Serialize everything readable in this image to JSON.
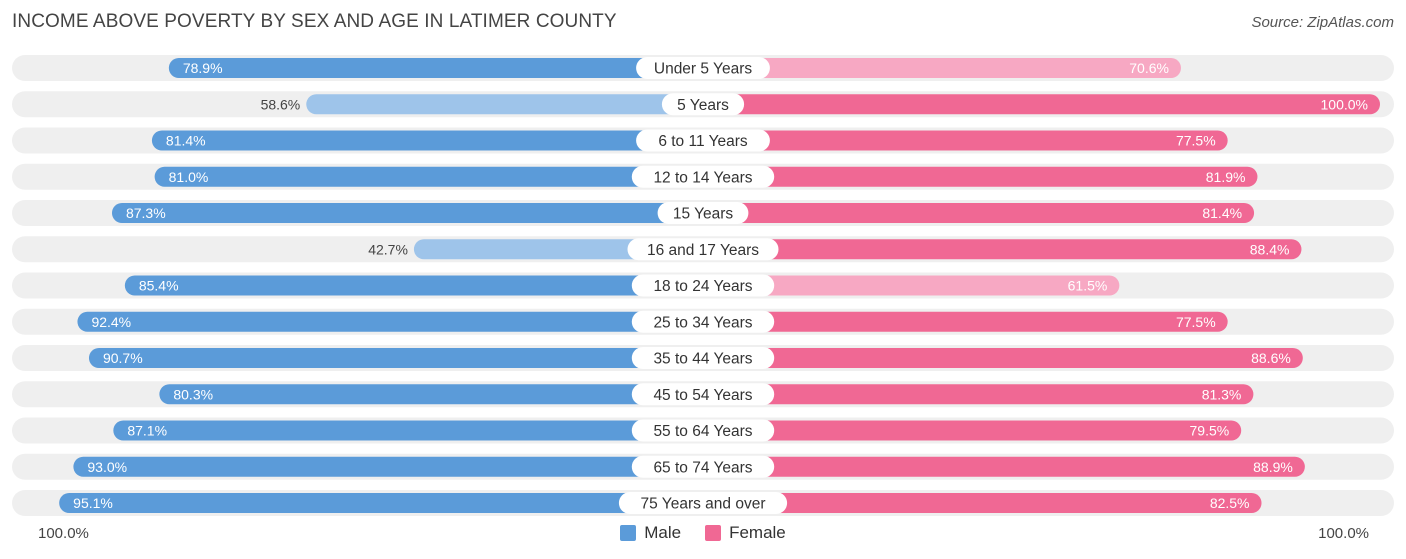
{
  "title": "INCOME ABOVE POVERTY BY SEX AND AGE IN LATIMER COUNTY",
  "source": "Source: ZipAtlas.com",
  "colors": {
    "male": "#5b9bd9",
    "male_light": "#9ec4ea",
    "female": "#f06894",
    "female_light": "#f7a8c3",
    "track": "#efefef"
  },
  "chart_data": {
    "type": "bar",
    "orientation": "horizontal-diverging",
    "title": "INCOME ABOVE POVERTY BY SEX AND AGE IN LATIMER COUNTY",
    "categories": [
      "Under 5 Years",
      "5 Years",
      "6 to 11 Years",
      "12 to 14 Years",
      "15 Years",
      "16 and 17 Years",
      "18 to 24 Years",
      "25 to 34 Years",
      "35 to 44 Years",
      "45 to 54 Years",
      "55 to 64 Years",
      "65 to 74 Years",
      "75 Years and over"
    ],
    "series": [
      {
        "name": "Male",
        "values": [
          78.9,
          58.6,
          81.4,
          81.0,
          87.3,
          42.7,
          85.4,
          92.4,
          90.7,
          80.3,
          87.1,
          93.0,
          95.1
        ],
        "labels": [
          "78.9%",
          "58.6%",
          "81.4%",
          "81.0%",
          "87.3%",
          "42.7%",
          "85.4%",
          "92.4%",
          "90.7%",
          "80.3%",
          "87.1%",
          "93.0%",
          "95.1%"
        ]
      },
      {
        "name": "Female",
        "values": [
          70.6,
          100.0,
          77.5,
          81.9,
          81.4,
          88.4,
          61.5,
          77.5,
          88.6,
          81.3,
          79.5,
          88.9,
          82.5
        ],
        "labels": [
          "70.6%",
          "100.0%",
          "77.5%",
          "81.9%",
          "81.4%",
          "88.4%",
          "61.5%",
          "77.5%",
          "88.6%",
          "81.3%",
          "79.5%",
          "88.9%",
          "82.5%"
        ]
      }
    ],
    "xlim": [
      0,
      100
    ],
    "axis_left_label": "100.0%",
    "axis_right_label": "100.0%",
    "legend": [
      "Male",
      "Female"
    ],
    "legend_position": "bottom-center"
  }
}
